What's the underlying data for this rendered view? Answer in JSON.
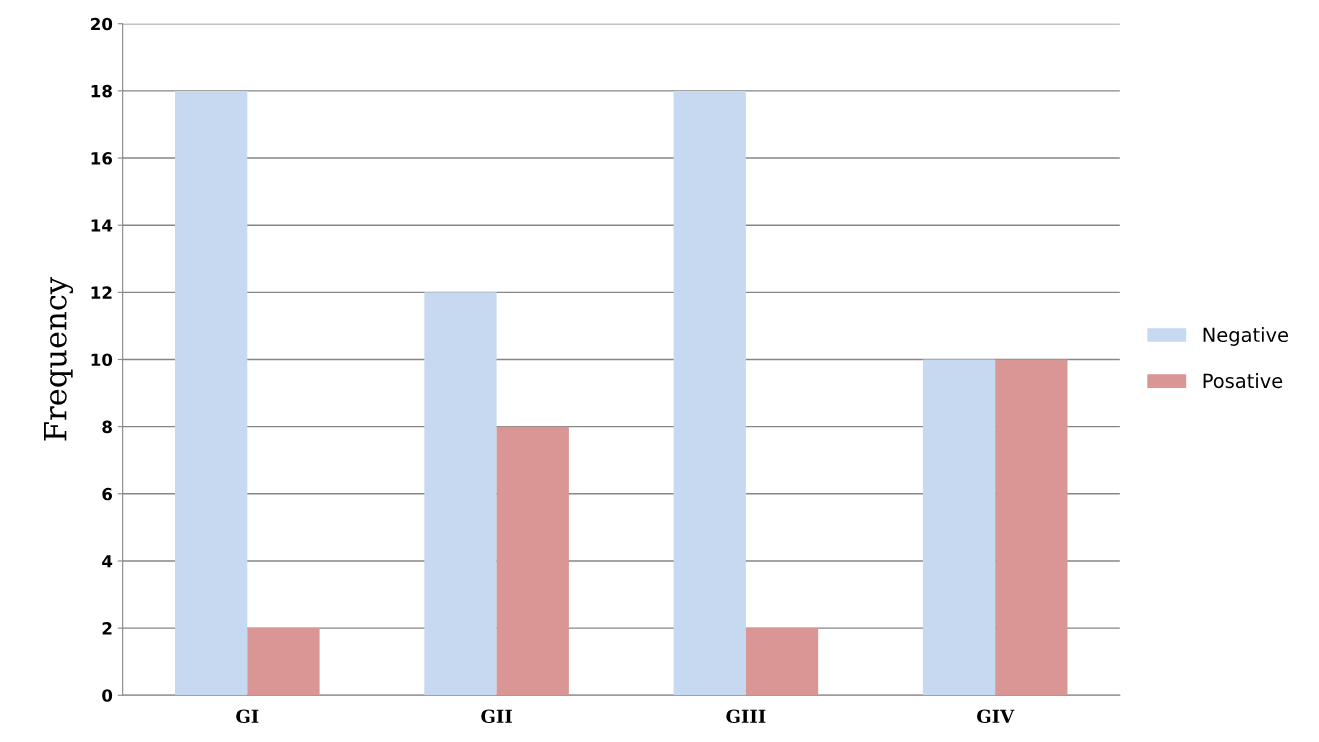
{
  "chart_data": {
    "type": "bar",
    "ylabel": "Frequency",
    "categories": [
      "GI",
      "GII",
      "GIII",
      "GIV"
    ],
    "series": [
      {
        "name": "Negative",
        "color": "#c6d9f1",
        "values": [
          18,
          12,
          18,
          10
        ]
      },
      {
        "name": "Posative",
        "color": "#d99694",
        "values": [
          2,
          8,
          2,
          10
        ]
      }
    ],
    "ylim": [
      0,
      20
    ],
    "yticks": [
      0,
      2,
      4,
      6,
      8,
      10,
      12,
      14,
      16,
      18,
      20
    ],
    "grid": "y",
    "legend": "right"
  }
}
